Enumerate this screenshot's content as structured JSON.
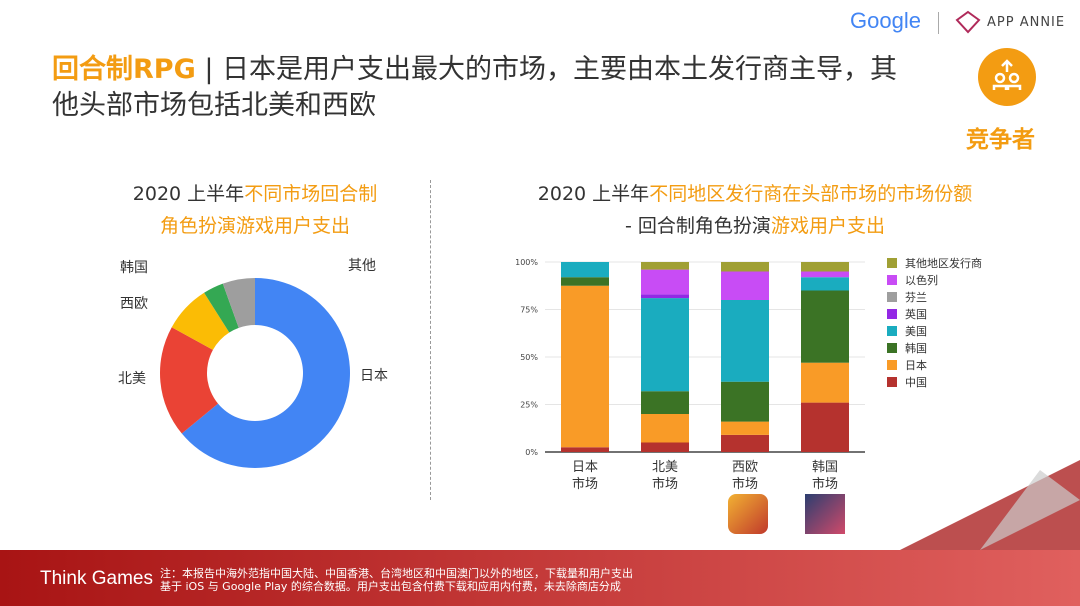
{
  "header": {
    "google_logo": "Google",
    "app_annie_logo": "APP ANNIE",
    "badge_label": "竞争者",
    "badge_color": "#f39c12"
  },
  "title": {
    "highlight": "回合制RPG",
    "rest": " | 日本是用户支出最大的市场，主要由本土发行商主导，其他头部市场包括北美和西欧"
  },
  "left_chart_title": {
    "black": "2020 上半年",
    "orange": "不同市场回合制角色扮演游戏用户支出"
  },
  "right_chart_title": {
    "black1": "2020 上半年",
    "orange1": "不同地区发行商在头部市场的市场份额",
    "black2": "- 回合制角色扮演",
    "orange2": "游戏用户支出"
  },
  "watermark": "APP ANNIE",
  "chart_data": [
    {
      "type": "pie",
      "donut": true,
      "slices": [
        {
          "label": "日本",
          "value": 64,
          "color": "#4285f4"
        },
        {
          "label": "北美",
          "value": 19,
          "color": "#ea4335"
        },
        {
          "label": "西欧",
          "value": 8,
          "color": "#fbbc05"
        },
        {
          "label": "韩国",
          "value": 3.5,
          "color": "#34a853"
        },
        {
          "label": "其他",
          "value": 5.5,
          "color": "#9e9e9e"
        }
      ]
    },
    {
      "type": "bar",
      "stacked": true,
      "categories": [
        "日本\n市场",
        "北美\n市场",
        "西欧\n市场",
        "韩国\n市场"
      ],
      "yticks": [
        "0%",
        "25%",
        "50%",
        "75%",
        "100%"
      ],
      "ylim": [
        0,
        100
      ],
      "legend": "right",
      "grid": true,
      "series": [
        {
          "name": "中国",
          "color": "#b5322e",
          "values": [
            2.5,
            5,
            9,
            26
          ]
        },
        {
          "name": "日本",
          "color": "#f99b27",
          "values": [
            85,
            15,
            7,
            21
          ]
        },
        {
          "name": "韩国",
          "color": "#3b7325",
          "values": [
            4.5,
            12,
            21,
            38
          ]
        },
        {
          "name": "美国",
          "color": "#1aacbf",
          "values": [
            8,
            49,
            43,
            7
          ]
        },
        {
          "name": "英国",
          "color": "#9328e5",
          "values": [
            0,
            2,
            0,
            0
          ]
        },
        {
          "name": "芬兰",
          "color": "#9e9e9e",
          "values": [
            0,
            0,
            0,
            0
          ]
        },
        {
          "name": "以色列",
          "color": "#c84cf5",
          "values": [
            0,
            13,
            15,
            3
          ]
        },
        {
          "name": "其他地区发行商",
          "color": "#a0a034",
          "values": [
            0,
            4,
            5,
            5
          ]
        }
      ]
    }
  ],
  "footer": {
    "brand": "Think Games",
    "note": "注：本报告中海外范指中国大陆、中国香港、台湾地区和中国澳门以外的地区，下载量和用户支出基于 iOS 与 Google Play 的综合数据。用户支出包含付费下载和应用内付费，未去除商店分成"
  }
}
